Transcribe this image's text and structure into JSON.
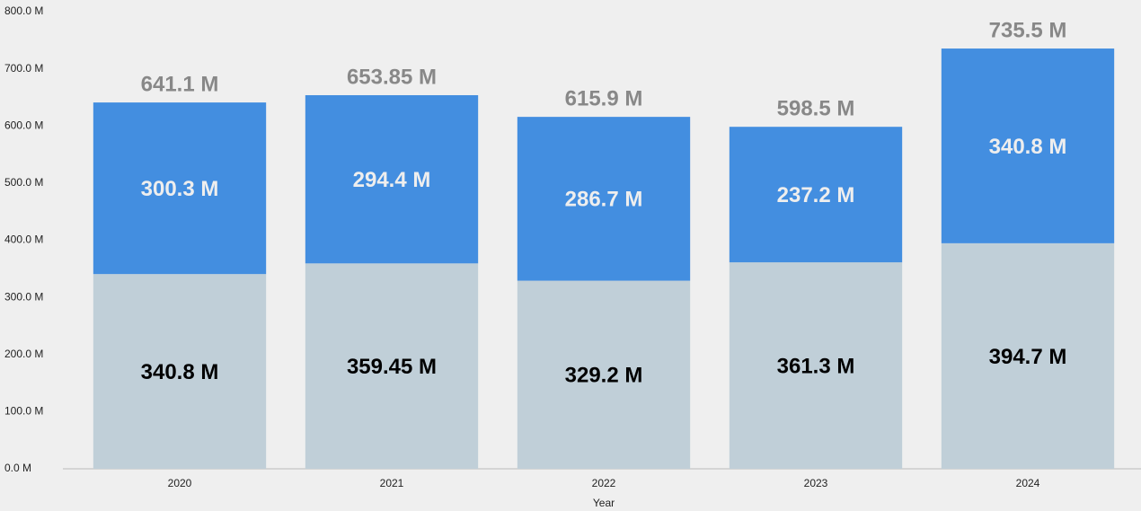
{
  "chart_data": {
    "type": "stacked-bar",
    "categories": [
      "2020",
      "2021",
      "2022",
      "2023",
      "2024"
    ],
    "x_label": "Year",
    "series": [
      {
        "color": "#c0cfd8",
        "label_color": "#000000",
        "values": [
          340.8,
          359.45,
          329.2,
          361.3,
          394.7
        ],
        "value_labels": [
          "340.8 M",
          "359.45 M",
          "329.2 M",
          "361.3 M",
          "394.7 M"
        ]
      },
      {
        "color": "#438ee0",
        "label_color": "#eeeeee",
        "values": [
          300.3,
          294.4,
          286.7,
          237.2,
          340.8
        ],
        "value_labels": [
          "300.3 M",
          "294.4 M",
          "286.7 M",
          "237.2 M",
          "340.8 M"
        ]
      }
    ],
    "totals": {
      "color": "#888888",
      "values": [
        641.1,
        653.85,
        615.9,
        598.5,
        735.5
      ],
      "value_labels": [
        "641.1 M",
        "653.85 M",
        "615.9 M",
        "598.5 M",
        "735.5 M"
      ]
    },
    "ylim": [
      0,
      800
    ],
    "yticks": [
      {
        "value": 0,
        "label": "0.0 M"
      },
      {
        "value": 100,
        "label": "100.0 M"
      },
      {
        "value": 200,
        "label": "200.0 M"
      },
      {
        "value": 300,
        "label": "300.0 M"
      },
      {
        "value": 400,
        "label": "400.0 M"
      },
      {
        "value": 500,
        "label": "500.0 M"
      },
      {
        "value": 600,
        "label": "600.0 M"
      },
      {
        "value": 700,
        "label": "700.0 M"
      },
      {
        "value": 800,
        "label": "800.0 M"
      }
    ],
    "grid": false
  }
}
